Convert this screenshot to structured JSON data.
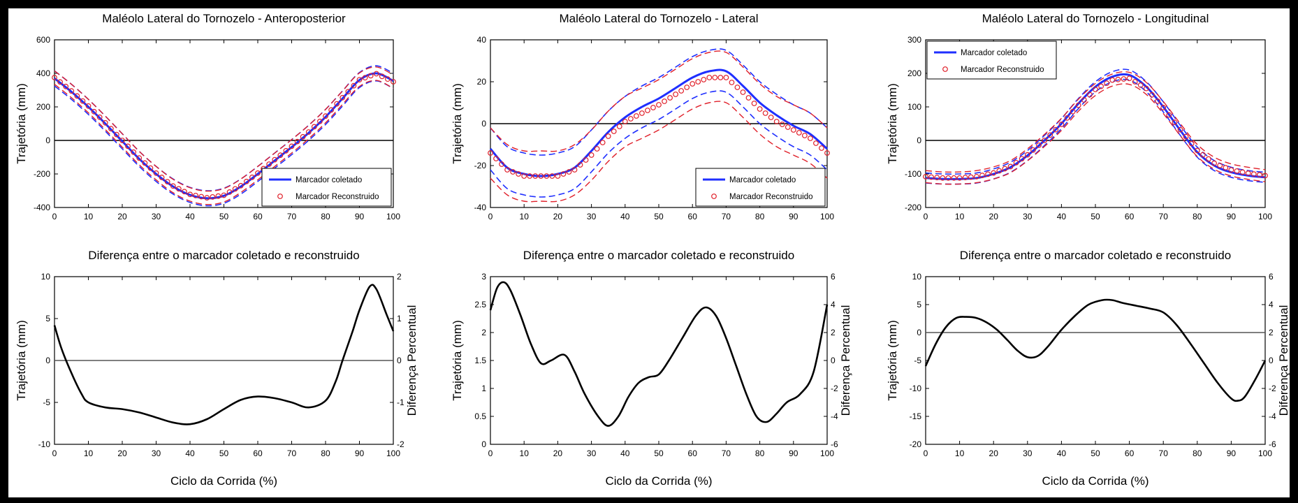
{
  "chart_data": [
    {
      "type": "line",
      "title": "Maléolo Lateral do Tornozelo - Anteroposterior",
      "xlabel": "",
      "ylabel": "Trajetória (mm)",
      "xlim": [
        0,
        100
      ],
      "ylim": [
        -400,
        600
      ],
      "xticks": [
        "0",
        "10",
        "20",
        "30",
        "40",
        "50",
        "60",
        "70",
        "80",
        "90",
        "100"
      ],
      "yticks": [
        "-400",
        "-200",
        "0",
        "200",
        "400",
        "600"
      ],
      "zero_line": true,
      "legend": {
        "placement": "bottom-right",
        "entries": [
          "Marcador coletado",
          "Marcador Reconstruido"
        ]
      },
      "colors": {
        "collected": "#1f2fff",
        "reconstructed": "#e0202a",
        "zero": "#000000"
      },
      "x": [
        0,
        5,
        10,
        15,
        20,
        25,
        30,
        35,
        40,
        45,
        50,
        55,
        60,
        65,
        70,
        75,
        80,
        85,
        90,
        95,
        100
      ],
      "series": [
        {
          "name": "Marcador coletado",
          "style": "solid",
          "values": [
            370,
            290,
            200,
            100,
            -5,
            -110,
            -200,
            -275,
            -325,
            -345,
            -330,
            -275,
            -200,
            -120,
            -40,
            45,
            140,
            250,
            360,
            400,
            355
          ],
          "band": 45
        },
        {
          "name": "Marcador Reconstruido",
          "style": "circles",
          "values": [
            375,
            295,
            205,
            105,
            0,
            -105,
            -195,
            -272,
            -322,
            -342,
            -327,
            -270,
            -195,
            -115,
            -35,
            50,
            145,
            255,
            362,
            398,
            350
          ],
          "band": 40
        }
      ]
    },
    {
      "type": "line",
      "title": "Maléolo Lateral do Tornozelo - Lateral",
      "xlabel": "",
      "ylabel": "Trajetória (mm)",
      "xlim": [
        0,
        100
      ],
      "ylim": [
        -40,
        40
      ],
      "xticks": [
        "0",
        "10",
        "20",
        "30",
        "40",
        "50",
        "60",
        "70",
        "80",
        "90",
        "100"
      ],
      "yticks": [
        "-40",
        "-20",
        "0",
        "20",
        "40"
      ],
      "zero_line": true,
      "legend": {
        "placement": "bottom-right",
        "entries": [
          "Marcador coletado",
          "Marcador Reconstruido"
        ]
      },
      "colors": {
        "collected": "#1f2fff",
        "reconstructed": "#e0202a",
        "zero": "#000000"
      },
      "x": [
        0,
        5,
        10,
        15,
        20,
        25,
        30,
        35,
        40,
        45,
        50,
        55,
        60,
        65,
        70,
        75,
        80,
        85,
        90,
        95,
        100
      ],
      "series": [
        {
          "name": "Marcador coletado",
          "style": "solid",
          "values": [
            -12,
            -21,
            -24,
            -25,
            -24,
            -21,
            -13,
            -4,
            3,
            8,
            12,
            17,
            22,
            25,
            25,
            18,
            10,
            4,
            -1,
            -5,
            -12
          ],
          "band": 10
        },
        {
          "name": "Marcador Reconstruido",
          "style": "circles",
          "values": [
            -14,
            -22,
            -25,
            -25,
            -25,
            -22,
            -15,
            -6,
            1,
            5,
            9,
            14,
            19,
            22,
            22,
            15,
            7,
            1,
            -3,
            -7,
            -14
          ],
          "band": 12
        }
      ]
    },
    {
      "type": "line",
      "title": "Maléolo Lateral do Tornozelo - Longitudinal",
      "xlabel": "",
      "ylabel": "Trajetória (mm)",
      "xlim": [
        0,
        100
      ],
      "ylim": [
        -200,
        300
      ],
      "xticks": [
        "0",
        "10",
        "20",
        "30",
        "40",
        "50",
        "60",
        "70",
        "80",
        "90",
        "100"
      ],
      "yticks": [
        "-200",
        "-100",
        "0",
        "100",
        "200",
        "300"
      ],
      "zero_line": true,
      "legend": {
        "placement": "top-left",
        "entries": [
          "Marcador coletado",
          "Marcador Reconstruido"
        ]
      },
      "colors": {
        "collected": "#1f2fff",
        "reconstructed": "#e0202a",
        "zero": "#000000"
      },
      "x": [
        0,
        5,
        10,
        15,
        20,
        25,
        30,
        35,
        40,
        45,
        50,
        55,
        60,
        65,
        70,
        75,
        80,
        85,
        90,
        95,
        100
      ],
      "series": [
        {
          "name": "Marcador coletado",
          "style": "solid",
          "values": [
            -112,
            -115,
            -115,
            -112,
            -100,
            -80,
            -45,
            0,
            50,
            110,
            160,
            190,
            195,
            160,
            100,
            30,
            -35,
            -75,
            -95,
            -105,
            -110
          ],
          "band": 15
        },
        {
          "name": "Marcador Reconstruido",
          "style": "circles",
          "values": [
            -108,
            -112,
            -112,
            -108,
            -97,
            -78,
            -43,
            0,
            48,
            105,
            152,
            180,
            185,
            155,
            98,
            32,
            -30,
            -68,
            -88,
            -98,
            -105
          ],
          "band": 18
        }
      ]
    },
    {
      "type": "line",
      "title": "Diferença entre o marcador coletado e reconstruido",
      "xlabel": "Ciclo da Corrida (%)",
      "ylabel": "Trajetória (mm)",
      "y2label": "Diferença Percentual",
      "xlim": [
        0,
        100
      ],
      "ylim": [
        -10,
        10
      ],
      "y2lim": [
        -2,
        2
      ],
      "xticks": [
        "0",
        "10",
        "20",
        "30",
        "40",
        "50",
        "60",
        "70",
        "80",
        "90",
        "100"
      ],
      "yticks": [
        "-10",
        "-5",
        "0",
        "5",
        "10"
      ],
      "y2ticks": [
        "-2",
        "-1",
        "0",
        "1",
        "2"
      ],
      "zero_line": true,
      "colors": {
        "line": "#000000",
        "zero": "#555555"
      },
      "x": [
        0,
        2,
        5,
        8,
        10,
        15,
        20,
        25,
        30,
        35,
        40,
        45,
        50,
        55,
        60,
        65,
        70,
        75,
        80,
        83,
        85,
        88,
        90,
        93,
        95,
        98,
        100
      ],
      "series": [
        {
          "name": "",
          "style": "solid",
          "values": [
            4.2,
            1.5,
            -1.5,
            -4,
            -5,
            -5.6,
            -5.8,
            -6.2,
            -6.8,
            -7.4,
            -7.6,
            -7,
            -5.8,
            -4.7,
            -4.3,
            -4.5,
            -5,
            -5.6,
            -4.8,
            -2.5,
            0,
            3.5,
            6,
            8.8,
            8.5,
            5.5,
            3.5
          ]
        }
      ]
    },
    {
      "type": "line",
      "title": "Diferença entre o marcador coletado e reconstruido",
      "xlabel": "Ciclo da Corrida (%)",
      "ylabel": "Trajetória (mm)",
      "y2label": "Diferença Percentual",
      "xlim": [
        0,
        100
      ],
      "ylim": [
        0,
        3
      ],
      "y2lim": [
        -6,
        6
      ],
      "xticks": [
        "0",
        "10",
        "20",
        "30",
        "40",
        "50",
        "60",
        "70",
        "80",
        "90",
        "100"
      ],
      "yticks": [
        "0",
        "0.5",
        "1",
        "1.5",
        "2",
        "2.5",
        "3"
      ],
      "y2ticks": [
        "-6",
        "-4",
        "-2",
        "0",
        "2",
        "4",
        "6"
      ],
      "zero_line": false,
      "colors": {
        "line": "#000000"
      },
      "x": [
        0,
        2,
        4,
        6,
        9,
        12,
        15,
        18,
        22,
        25,
        28,
        32,
        35,
        38,
        41,
        44,
        47,
        50,
        53,
        57,
        61,
        64,
        67,
        70,
        73,
        76,
        79,
        82,
        85,
        88,
        92,
        96,
        100
      ],
      "series": [
        {
          "name": "",
          "style": "solid",
          "values": [
            2.4,
            2.8,
            2.9,
            2.75,
            2.3,
            1.8,
            1.45,
            1.5,
            1.6,
            1.3,
            0.9,
            0.5,
            0.33,
            0.5,
            0.85,
            1.1,
            1.2,
            1.25,
            1.5,
            1.9,
            2.3,
            2.45,
            2.3,
            1.9,
            1.4,
            0.9,
            0.5,
            0.4,
            0.55,
            0.75,
            0.9,
            1.3,
            2.5
          ]
        }
      ]
    },
    {
      "type": "line",
      "title": "Diferença entre o marcador coletado e reconstruido",
      "xlabel": "Ciclo da Corrida (%)",
      "ylabel": "Trajetória (mm)",
      "y2label": "Diferença Percentual",
      "xlim": [
        0,
        100
      ],
      "ylim": [
        -20,
        10
      ],
      "y2lim": [
        -6,
        6
      ],
      "xticks": [
        "0",
        "10",
        "20",
        "30",
        "40",
        "50",
        "60",
        "70",
        "80",
        "90",
        "100"
      ],
      "yticks": [
        "-20",
        "-15",
        "-10",
        "-5",
        "0",
        "5",
        "10"
      ],
      "y2ticks": [
        "-6",
        "-4",
        "-2",
        "0",
        "2",
        "4",
        "6"
      ],
      "zero_line": true,
      "colors": {
        "line": "#000000",
        "zero": "#555555"
      },
      "x": [
        0,
        3,
        6,
        9,
        12,
        15,
        18,
        21,
        24,
        27,
        30,
        33,
        36,
        40,
        44,
        48,
        52,
        55,
        58,
        62,
        66,
        70,
        74,
        78,
        82,
        86,
        90,
        92,
        94,
        97,
        100
      ],
      "series": [
        {
          "name": "",
          "style": "solid",
          "values": [
            -6,
            -2,
            1,
            2.6,
            2.8,
            2.6,
            1.8,
            0.5,
            -1.3,
            -3.2,
            -4.4,
            -4.2,
            -2.5,
            0.5,
            3,
            5,
            5.8,
            5.8,
            5.3,
            4.8,
            4.3,
            3.6,
            1.3,
            -2,
            -5.5,
            -9,
            -11.8,
            -12.2,
            -11.5,
            -8.5,
            -5
          ]
        }
      ]
    }
  ]
}
